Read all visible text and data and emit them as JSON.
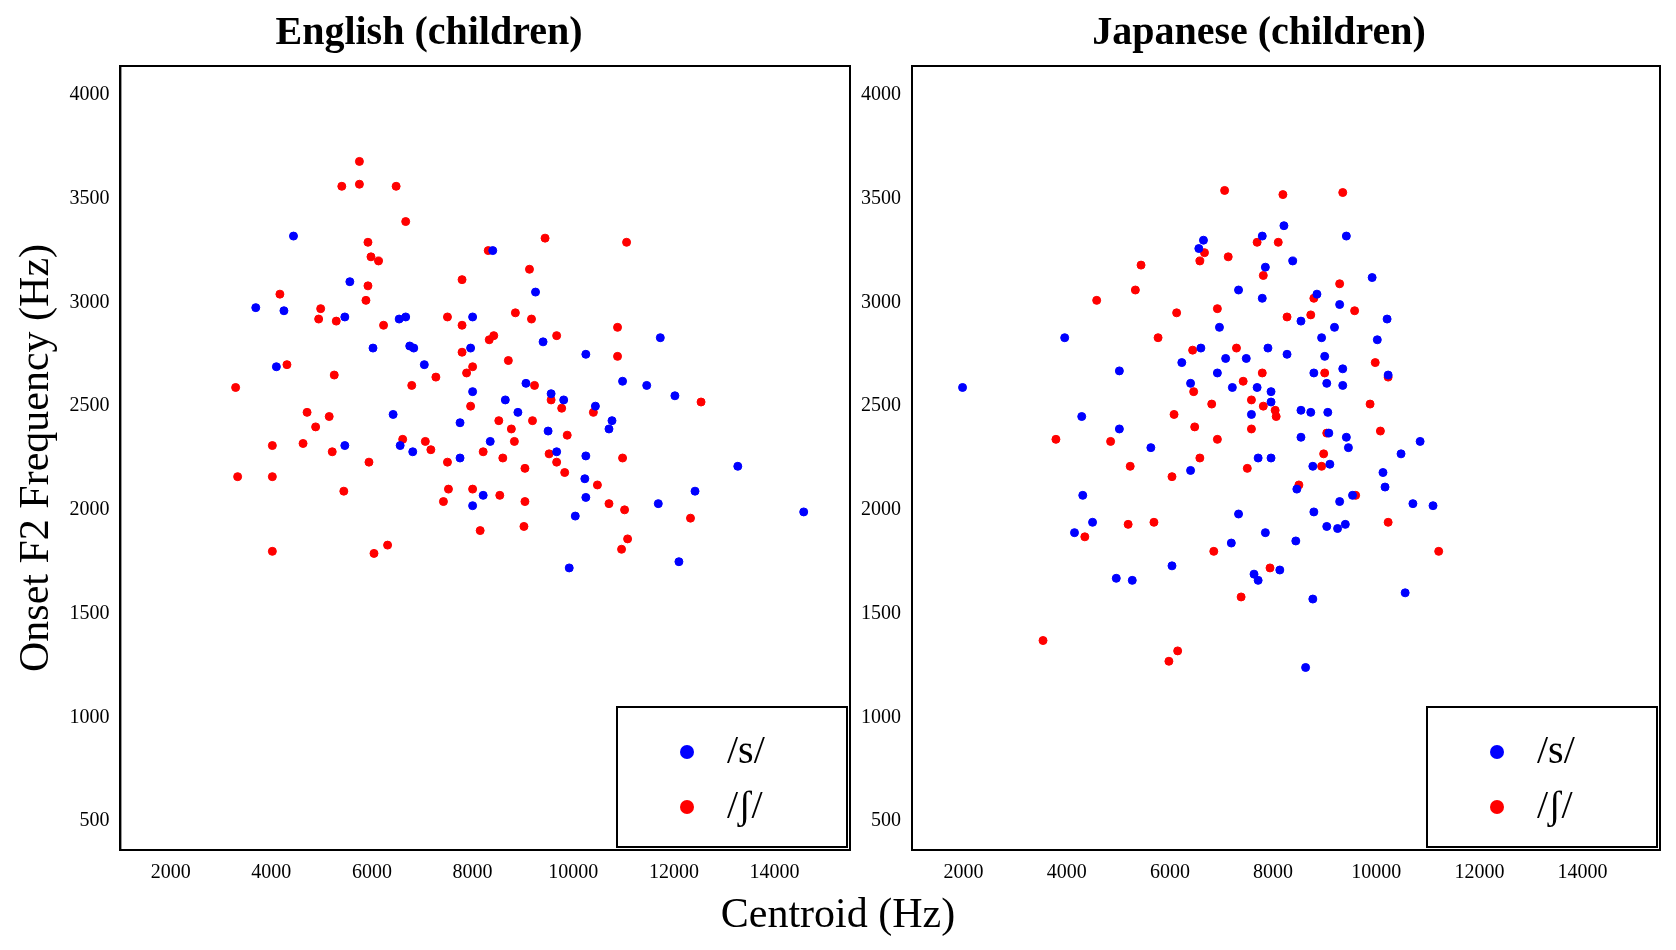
{
  "chart_data": [
    {
      "type": "scatter",
      "title": "English (children)",
      "xlabel": "Centroid (Hz)",
      "ylabel": "Onset F2 Frequency (Hz)",
      "xlim": [
        1000,
        15500
      ],
      "xticks": [
        2000,
        4000,
        6000,
        8000,
        10000,
        12000,
        14000
      ],
      "ylim": [
        360,
        4140
      ],
      "yticks": [
        500,
        1000,
        1500,
        2000,
        2500,
        3000,
        3500,
        4000
      ],
      "grid": false,
      "legend": "bottom right",
      "marker": "circle",
      "series": [
        {
          "name": "/s/",
          "color": "#0000ff",
          "x": [
            4440,
            3690,
            4250,
            4100,
            5560,
            5460,
            6020,
            6540,
            6670,
            6750,
            6830,
            6420,
            7040,
            6810,
            6560,
            5460,
            8000,
            7960,
            8000,
            7750,
            7750,
            8400,
            8650,
            8350,
            8210,
            8000,
            9250,
            9400,
            8900,
            9060,
            9560,
            9500,
            9670,
            9810,
            10250,
            10250,
            10230,
            10250,
            10040,
            9920,
            10440,
            10770,
            10710,
            10980,
            11460,
            11730,
            11690,
            12020,
            12100,
            12420,
            13270,
            14580
          ],
          "values": [
            3320,
            2975,
            2960,
            2690,
            3100,
            2930,
            2780,
            2920,
            2930,
            2790,
            2780,
            2460,
            2700,
            2280,
            2310,
            2310,
            2930,
            2780,
            2570,
            2420,
            2250,
            3250,
            2530,
            2330,
            2070,
            2020,
            3050,
            2810,
            2470,
            2610,
            2560,
            2380,
            2280,
            2530,
            2750,
            2260,
            2150,
            2060,
            1970,
            1720,
            2500,
            2430,
            2390,
            2620,
            2600,
            2830,
            2030,
            2550,
            1750,
            2090,
            2210,
            1990
          ]
        },
        {
          "name": "/ʃ/",
          "color": "#ff0000",
          "x": [
            3290,
            3330,
            4020,
            4020,
            4020,
            4170,
            4310,
            4710,
            4630,
            4880,
            4980,
            4940,
            5150,
            5250,
            5210,
            5290,
            5440,
            5400,
            5750,
            5750,
            5920,
            5980,
            6130,
            5920,
            5880,
            5940,
            6040,
            6310,
            6230,
            6480,
            6670,
            6790,
            6610,
            7060,
            7170,
            7270,
            7420,
            7500,
            7520,
            7500,
            7790,
            7790,
            7790,
            7880,
            8000,
            7960,
            8000,
            8150,
            8210,
            8310,
            8420,
            8330,
            8520,
            8600,
            8540,
            8710,
            8850,
            8770,
            8830,
            9040,
            9020,
            9040,
            9170,
            9130,
            9440,
            9230,
            9190,
            9560,
            9520,
            9670,
            9770,
            9830,
            9670,
            9880,
            10400,
            10480,
            10710,
            10880,
            10880,
            10980,
            10960,
            11080,
            11060,
            11020,
            12330,
            12540
          ],
          "values": [
            2590,
            2160,
            2310,
            2160,
            1800,
            3040,
            2700,
            2470,
            2320,
            2400,
            2970,
            2920,
            2450,
            2650,
            2280,
            2910,
            2090,
            3560,
            3570,
            3680,
            3290,
            3220,
            3200,
            3080,
            3010,
            2230,
            1790,
            1830,
            2890,
            3560,
            3390,
            2600,
            2340,
            2330,
            2290,
            2640,
            2040,
            2230,
            2100,
            2930,
            3110,
            2890,
            2760,
            2660,
            2690,
            2500,
            2100,
            1900,
            2280,
            3250,
            2840,
            2820,
            2430,
            2250,
            2070,
            2720,
            2950,
            2390,
            2330,
            2040,
            1920,
            2200,
            2920,
            3160,
            3310,
            2600,
            2430,
            2530,
            2270,
            2840,
            2490,
            2180,
            2230,
            2360,
            2470,
            2120,
            2030,
            2880,
            2740,
            2250,
            1810,
            1860,
            3290,
            2000,
            1960,
            2520
          ]
        }
      ]
    },
    {
      "type": "scatter",
      "title": "Japanese (children)",
      "xlim": [
        1000,
        15500
      ],
      "xticks": [
        2000,
        4000,
        6000,
        8000,
        10000,
        12000,
        14000
      ],
      "ylim": [
        360,
        4140
      ],
      "yticks": [
        500,
        1000,
        1500,
        2000,
        2500,
        3000,
        3500,
        4000
      ],
      "grid": false,
      "legend": "bottom right",
      "marker": "circle",
      "series": [
        {
          "name": "/s/",
          "color": "#0000ff",
          "x": [
            1980,
            3960,
            4290,
            4310,
            4150,
            4500,
            5020,
            5020,
            4960,
            5270,
            5630,
            6040,
            6400,
            6230,
            6400,
            6600,
            6650,
            6560,
            6920,
            6960,
            7080,
            7210,
            7330,
            7190,
            7330,
            7480,
            7580,
            7690,
            7710,
            7630,
            7710,
            7790,
            7850,
            7790,
            7900,
            7850,
            7960,
            7960,
            7960,
            8130,
            8210,
            8270,
            8380,
            8460,
            8440,
            8540,
            8540,
            8540,
            8730,
            8790,
            8850,
            8940,
            8770,
            8770,
            8630,
            8790,
            9000,
            9040,
            9060,
            9080,
            9100,
            9040,
            9250,
            9290,
            9460,
            9420,
            9350,
            9350,
            9290,
            9190,
            9420,
            9400,
            9920,
            10020,
            10130,
            10170,
            10230,
            10210,
            10480,
            10560,
            10710,
            10850,
            11100,
            9540
          ],
          "values": [
            2590,
            2830,
            2450,
            2070,
            1890,
            1940,
            2390,
            2670,
            1670,
            1660,
            2300,
            1730,
            2190,
            2710,
            2610,
            2780,
            3300,
            3260,
            2660,
            2880,
            2730,
            2590,
            1980,
            1840,
            3060,
            2730,
            2460,
            2590,
            2250,
            1690,
            1660,
            3320,
            3170,
            3020,
            2780,
            1890,
            2570,
            2520,
            2250,
            1710,
            3370,
            2750,
            3200,
            2100,
            1850,
            2910,
            2480,
            2350,
            2470,
            2660,
            3040,
            2830,
            2210,
            1570,
            1240,
            1990,
            2740,
            2610,
            2470,
            2370,
            2220,
            1920,
            1910,
            2040,
            2300,
            2350,
            2600,
            2680,
            2990,
            2880,
            3320,
            1930,
            3120,
            2820,
            2180,
            2110,
            2650,
            2920,
            2270,
            1600,
            2030,
            2330,
            2020,
            2070
          ]
        },
        {
          "name": "/ʃ/",
          "color": "#ff0000",
          "x": [
            3540,
            3790,
            4350,
            4580,
            4850,
            5230,
            5330,
            5440,
            5190,
            5690,
            5770,
            6040,
            6080,
            6130,
            5980,
            6150,
            6460,
            6440,
            6480,
            6580,
            6580,
            6670,
            6920,
            6810,
            6920,
            6850,
            7060,
            7130,
            7290,
            7420,
            7380,
            7500,
            7580,
            7580,
            7690,
            7810,
            7790,
            7810,
            7940,
            8040,
            8100,
            8190,
            8060,
            8270,
            8500,
            8730,
            8790,
            8940,
            8980,
            9000,
            9040,
            9350,
            9290,
            9580,
            9600,
            9880,
            9980,
            10230,
            10230,
            10080,
            11210
          ],
          "values": [
            1370,
            2340,
            1870,
            3010,
            2330,
            2210,
            3060,
            3180,
            1930,
            1940,
            2830,
            2160,
            2460,
            2950,
            1270,
            1320,
            2570,
            2770,
            2400,
            2250,
            3200,
            3240,
            2970,
            2510,
            2340,
            1800,
            3540,
            3220,
            2780,
            2620,
            1580,
            2200,
            2390,
            2530,
            3290,
            3130,
            2660,
            2500,
            1720,
            2480,
            3290,
            3520,
            2450,
            2930,
            2120,
            2940,
            3020,
            2210,
            2270,
            2660,
            2370,
            3530,
            3090,
            2960,
            2070,
            2510,
            2710,
            2640,
            1940,
            2380,
            1800
          ]
        }
      ]
    }
  ]
}
